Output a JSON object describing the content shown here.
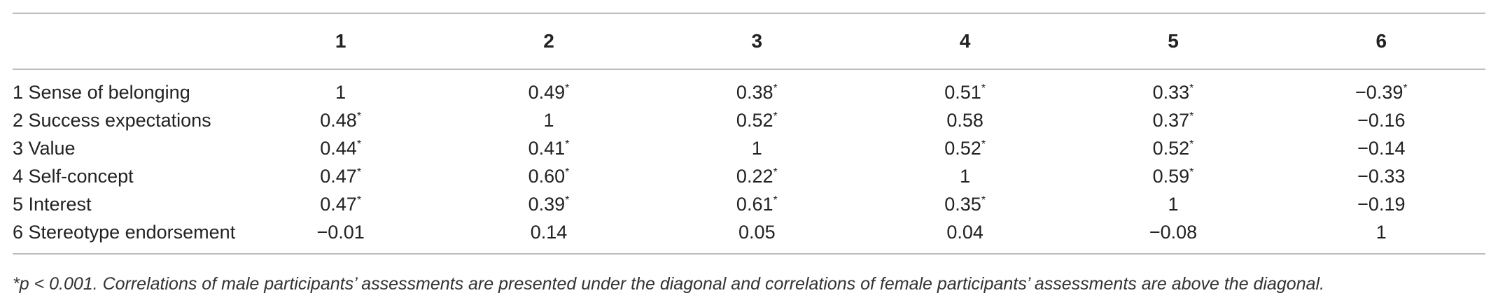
{
  "table": {
    "headers": [
      "",
      "1",
      "2",
      "3",
      "4",
      "5",
      "6"
    ],
    "rows": [
      {
        "label": "1 Sense of belonging",
        "cells": [
          {
            "v": "1",
            "s": ""
          },
          {
            "v": "0.49",
            "s": "*"
          },
          {
            "v": "0.38",
            "s": "*"
          },
          {
            "v": "0.51",
            "s": "*"
          },
          {
            "v": "0.33",
            "s": "*"
          },
          {
            "v": "−0.39",
            "s": "*"
          }
        ]
      },
      {
        "label": "2 Success expectations",
        "cells": [
          {
            "v": "0.48",
            "s": "*"
          },
          {
            "v": "1",
            "s": ""
          },
          {
            "v": "0.52",
            "s": "*"
          },
          {
            "v": "0.58",
            "s": ""
          },
          {
            "v": "0.37",
            "s": "*"
          },
          {
            "v": "−0.16",
            "s": ""
          }
        ]
      },
      {
        "label": "3 Value",
        "cells": [
          {
            "v": "0.44",
            "s": "*"
          },
          {
            "v": "0.41",
            "s": "*"
          },
          {
            "v": "1",
            "s": ""
          },
          {
            "v": "0.52",
            "s": "*"
          },
          {
            "v": "0.52",
            "s": "*"
          },
          {
            "v": "−0.14",
            "s": ""
          }
        ]
      },
      {
        "label": "4 Self-concept",
        "cells": [
          {
            "v": "0.47",
            "s": "*"
          },
          {
            "v": "0.60",
            "s": "*"
          },
          {
            "v": "0.22",
            "s": "*"
          },
          {
            "v": "1",
            "s": ""
          },
          {
            "v": "0.59",
            "s": "*"
          },
          {
            "v": "−0.33",
            "s": ""
          }
        ]
      },
      {
        "label": "5 Interest",
        "cells": [
          {
            "v": "0.47",
            "s": "*"
          },
          {
            "v": "0.39",
            "s": "*"
          },
          {
            "v": "0.61",
            "s": "*"
          },
          {
            "v": "0.35",
            "s": "*"
          },
          {
            "v": "1",
            "s": ""
          },
          {
            "v": "−0.19",
            "s": ""
          }
        ]
      },
      {
        "label": "6 Stereotype endorsement",
        "cells": [
          {
            "v": "−0.01",
            "s": ""
          },
          {
            "v": "0.14",
            "s": ""
          },
          {
            "v": "0.05",
            "s": ""
          },
          {
            "v": "0.04",
            "s": ""
          },
          {
            "v": "−0.08",
            "s": ""
          },
          {
            "v": "1",
            "s": ""
          }
        ]
      }
    ]
  },
  "footnote": "*p < 0.001. Correlations of male participants’ assessments are presented under the diagonal and correlations of female participants’ assessments are above the diagonal."
}
